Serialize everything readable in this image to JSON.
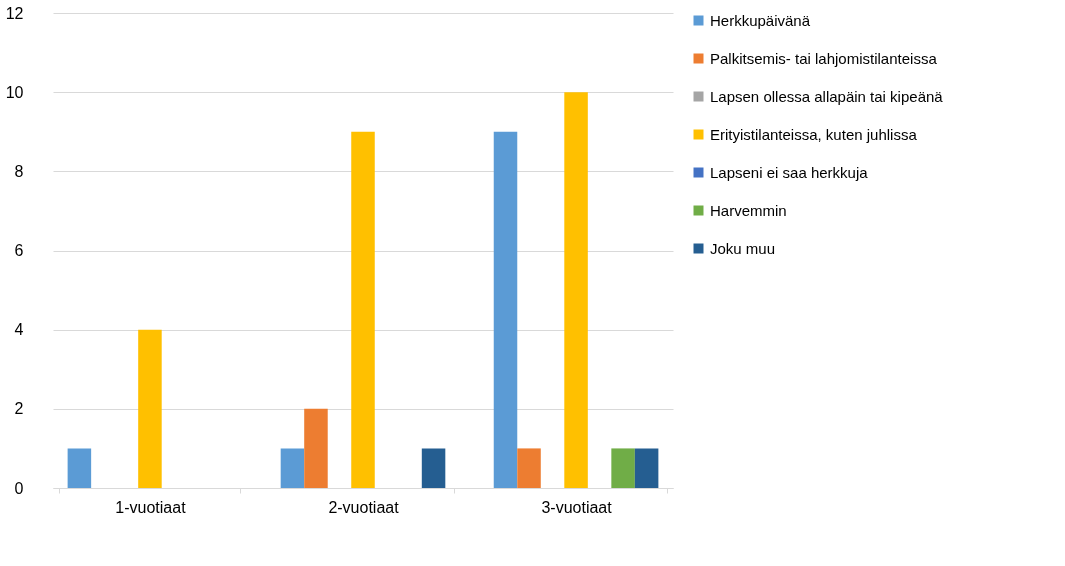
{
  "chart_data": {
    "type": "bar",
    "categories": [
      "1-vuotiaat",
      "2-vuotiaat",
      "3-vuotiaat"
    ],
    "series": [
      {
        "name": "Herkkupäivänä",
        "color": "#5b9bd5",
        "values": [
          1,
          1,
          9
        ]
      },
      {
        "name": "Palkitsemis- tai lahjomistilanteissa",
        "color": "#ed7d31",
        "values": [
          0,
          2,
          1
        ]
      },
      {
        "name": "Lapsen ollessa allapäin tai kipeänä",
        "color": "#a5a5a5",
        "values": [
          0,
          0,
          0
        ]
      },
      {
        "name": "Erityistilanteissa, kuten juhlissa",
        "color": "#ffc000",
        "values": [
          4,
          9,
          10
        ]
      },
      {
        "name": "Lapseni ei saa herkkuja",
        "color": "#4472c4",
        "values": [
          0,
          0,
          0
        ]
      },
      {
        "name": "Harvemmin",
        "color": "#70ad47",
        "values": [
          0,
          0,
          1
        ]
      },
      {
        "name": "Joku muu",
        "color": "#255e91",
        "values": [
          0,
          1,
          1
        ]
      }
    ],
    "ylim": [
      0,
      12
    ],
    "yticks": [
      0,
      2,
      4,
      6,
      8,
      10,
      12
    ],
    "grid": "y",
    "legend": "right"
  }
}
